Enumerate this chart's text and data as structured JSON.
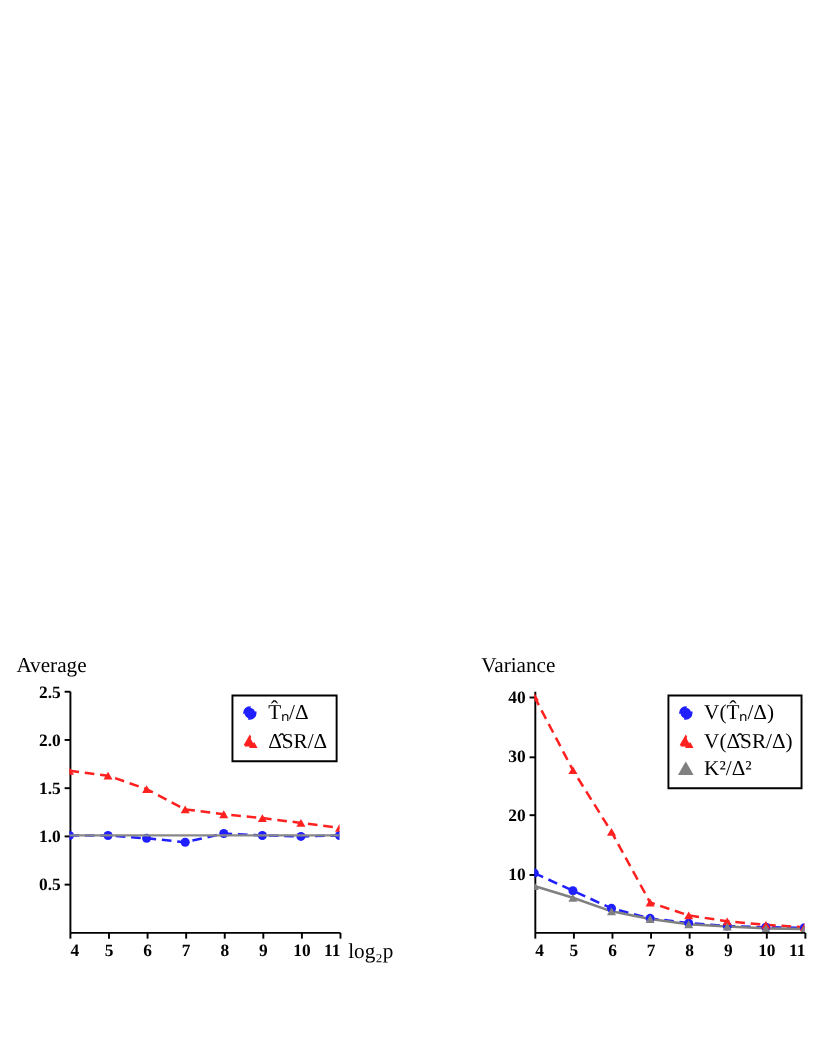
{
  "chart_data": [
    {
      "type": "line",
      "ylabel": "Average",
      "xlabel": "log₂p",
      "x": [
        4,
        5,
        6,
        7,
        8,
        9,
        10,
        11
      ],
      "xlim": [
        4,
        11
      ],
      "xticks": [
        4,
        5,
        6,
        7,
        8,
        9,
        10,
        11
      ],
      "ylim": [
        0,
        2.5
      ],
      "yticks": [
        {
          "value": 0.5,
          "label": "0.5"
        },
        {
          "value": 1,
          "label": "1.0"
        },
        {
          "value": 1.5,
          "label": "1.5"
        },
        {
          "value": 2,
          "label": "2.0"
        },
        {
          "value": 2.5,
          "label": "2.5"
        }
      ],
      "grid": false,
      "legend": "top right",
      "ref_lines": [
        {
          "axis": "y",
          "value": 1,
          "color": "#888888",
          "line_style": "solid"
        }
      ],
      "series": [
        {
          "name": "T̂ₙ/Δ",
          "color": "#1f1fff",
          "marker": "circle",
          "line_style": "dashed",
          "values": [
            1.0,
            1.0,
            0.97,
            0.93,
            1.02,
            1.0,
            0.99,
            1.0
          ]
        },
        {
          "name": "Δ̂SR/Δ",
          "color": "#ff2020",
          "marker": "triangle",
          "line_style": "dashed",
          "values": [
            1.67,
            1.62,
            1.48,
            1.27,
            1.22,
            1.18,
            1.13,
            1.08
          ]
        }
      ]
    },
    {
      "type": "line",
      "ylabel": "Variance",
      "x": [
        4,
        5,
        6,
        7,
        8,
        9,
        10,
        11
      ],
      "xlim": [
        4,
        11
      ],
      "xticks": [
        4,
        5,
        6,
        7,
        8,
        9,
        10,
        11
      ],
      "ylim": [
        0,
        41
      ],
      "yticks": [
        10,
        20,
        30,
        40
      ],
      "grid": false,
      "legend": "top right",
      "series": [
        {
          "name": "V(T̂ₙ/Δ)",
          "color": "#1f1fff",
          "marker": "circle",
          "line_style": "dashed",
          "values": [
            10,
            7,
            4,
            2.3,
            1.5,
            1.0,
            0.8,
            0.7
          ]
        },
        {
          "name": "V(Δ̂SR/Δ)",
          "color": "#ff2020",
          "marker": "triangle",
          "line_style": "dashed",
          "values": [
            40,
            27.5,
            17,
            5,
            2.8,
            1.8,
            1.2,
            0.8
          ]
        },
        {
          "name": "K²/Δ²",
          "color": "#808080",
          "marker": "triangle",
          "line_style": "solid",
          "values": [
            7.8,
            5.8,
            3.5,
            2.2,
            1.3,
            0.9,
            0.6,
            0.5
          ]
        }
      ]
    }
  ]
}
